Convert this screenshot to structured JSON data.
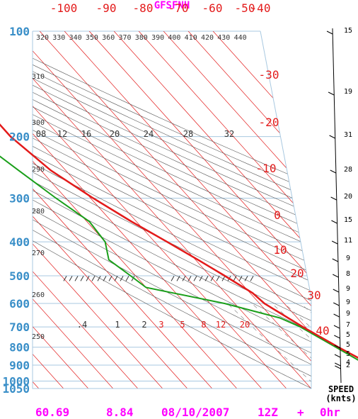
{
  "title": "GFSFNH",
  "footer": {
    "lat": "60.69",
    "lon": "8.84",
    "date": "08/10/2007",
    "hour": "12Z",
    "plus": "+",
    "fcst": "0hr"
  },
  "speed_label": [
    "SPEED",
    "(knts)"
  ],
  "colors": {
    "temperature": "#e31a1a",
    "dewpoint": "#1a9f1a",
    "pressure_labels": "#3a8fc8",
    "title": "#ff00ff",
    "isotherms": "#e31a1a",
    "isobars": "#a8c8e0",
    "dry_adiabats": "#555555"
  },
  "chart_data": {
    "type": "skew-t",
    "pressure_levels_hPa": [
      100,
      200,
      300,
      400,
      500,
      600,
      700,
      800,
      900,
      1000,
      1050
    ],
    "pressure_labels": [
      "100",
      "200",
      "300",
      "400",
      "500",
      "600",
      "700",
      "800",
      "900",
      "1000",
      "1050"
    ],
    "top_temperature_labels": [
      "-100",
      "-90",
      "-80",
      "-70",
      "-60",
      "-50",
      "-40"
    ],
    "side_temperature_labels": [
      "-30",
      "-20",
      "-10",
      "0",
      "10",
      "20",
      "30",
      "40"
    ],
    "theta_labels_top": [
      "320",
      "330",
      "340",
      "350",
      "360",
      "370",
      "380",
      "390",
      "400",
      "410",
      "420",
      "430",
      "440"
    ],
    "theta_labels_left": [
      "310",
      "300",
      "290",
      "280",
      "270",
      "260",
      "250"
    ],
    "mixing_ratio_labels_upper": [
      "08",
      "12",
      "16",
      "20",
      "24",
      "28",
      "32"
    ],
    "mixing_ratio_labels_lower": [
      ".4",
      "1",
      "2",
      "3",
      "5",
      "8",
      "12",
      "20"
    ],
    "temperature_profile": [
      {
        "p": 918,
        "t": 5
      },
      {
        "p": 900,
        "t": 3
      },
      {
        "p": 800,
        "t": -4
      },
      {
        "p": 700,
        "t": -11
      },
      {
        "p": 600,
        "t": -18
      },
      {
        "p": 560,
        "t": -19
      },
      {
        "p": 500,
        "t": -24
      },
      {
        "p": 450,
        "t": -29
      },
      {
        "p": 400,
        "t": -35
      },
      {
        "p": 350,
        "t": -42
      },
      {
        "p": 300,
        "t": -49
      },
      {
        "p": 250,
        "t": -56
      },
      {
        "p": 200,
        "t": -60
      },
      {
        "p": 170,
        "t": -60
      },
      {
        "p": 130,
        "t": -54
      },
      {
        "p": 100,
        "t": -52
      }
    ],
    "dewpoint_profile": [
      {
        "p": 918,
        "t": 2
      },
      {
        "p": 900,
        "t": 1
      },
      {
        "p": 800,
        "t": -5
      },
      {
        "p": 700,
        "t": -12
      },
      {
        "p": 660,
        "t": -17
      },
      {
        "p": 600,
        "t": -34
      },
      {
        "p": 540,
        "t": -60
      },
      {
        "p": 500,
        "t": -62
      },
      {
        "p": 450,
        "t": -65
      },
      {
        "p": 400,
        "t": -60
      },
      {
        "p": 350,
        "t": -59
      },
      {
        "p": 300,
        "t": -64
      },
      {
        "p": 250,
        "t": -69
      },
      {
        "p": 200,
        "t": -75
      }
    ],
    "wind_speeds_kt": [
      "15",
      "19",
      "31",
      "28",
      "20",
      "15",
      "11",
      "9",
      "8",
      "9",
      "9",
      "9",
      "7",
      "5",
      "5",
      "5",
      "4",
      "2"
    ],
    "isotherm_range_C": [
      -100,
      40
    ],
    "isotherm_step_C": 10
  }
}
